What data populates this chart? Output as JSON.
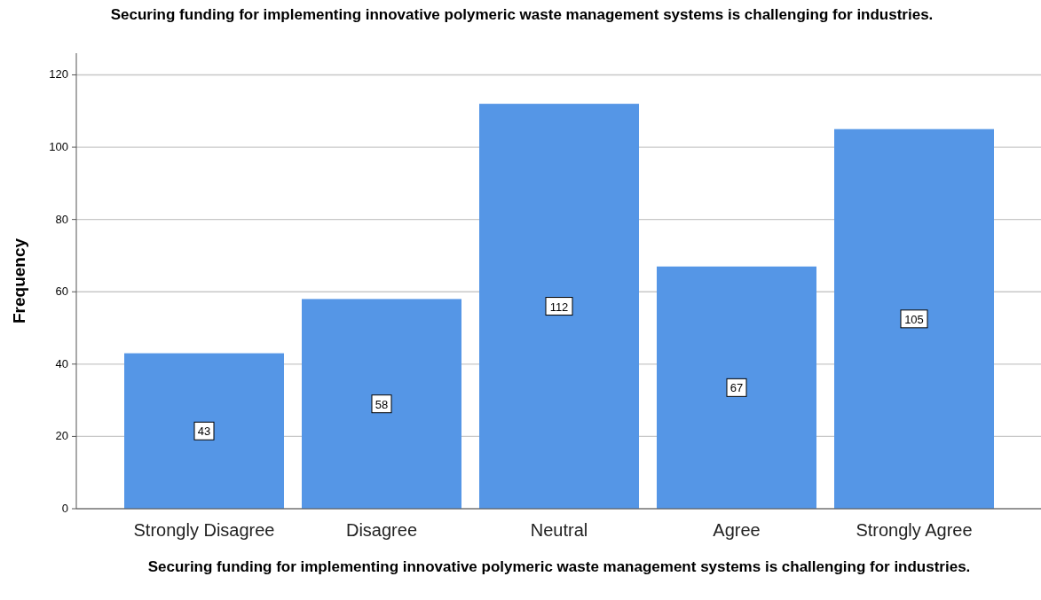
{
  "chart_data": {
    "type": "bar",
    "title": "Securing funding for implementing innovative polymeric waste management systems is challenging for industries.",
    "xlabel": "Securing funding for implementing innovative polymeric waste management systems is challenging for industries.",
    "ylabel": "Frequency",
    "categories": [
      "Strongly Disagree",
      "Disagree",
      "Neutral",
      "Agree",
      "Strongly Agree"
    ],
    "values": [
      43,
      58,
      112,
      67,
      105
    ],
    "color": "#5596e6",
    "ylim": [
      0,
      126
    ],
    "yticks": [
      0,
      20,
      40,
      60,
      80,
      100,
      120
    ],
    "grid": "y",
    "data_labels": true
  }
}
